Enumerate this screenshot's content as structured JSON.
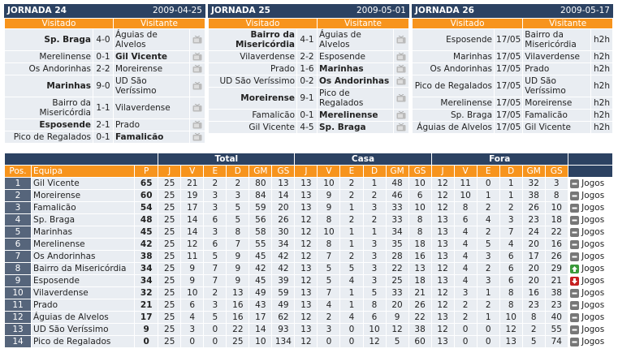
{
  "rounds": [
    {
      "title": "JORNADA 24",
      "date": "2009-04-25",
      "home_header": "Visitado",
      "away_header": "Visitante",
      "matches": [
        {
          "home": "Sp. Braga",
          "result": "4-0",
          "away": "Águias de Alvelos",
          "winner": "home"
        },
        {
          "home": "Merelinense",
          "result": "0-1",
          "away": "Gil Vicente",
          "winner": "away"
        },
        {
          "home": "Os Andorinhas",
          "result": "2-2",
          "away": "Moreirense",
          "winner": null
        },
        {
          "home": "Marinhas",
          "result": "9-0",
          "away": "UD São Veríssimo",
          "winner": "home"
        },
        {
          "home": "Bairro da Misericórdia",
          "result": "1-1",
          "away": "Vilaverdense",
          "winner": null
        },
        {
          "home": "Esposende",
          "result": "2-1",
          "away": "Prado",
          "winner": "home"
        },
        {
          "home": "Pico de Regalados",
          "result": "0-1",
          "away": "Famalicão",
          "winner": "away"
        }
      ]
    },
    {
      "title": "JORNADA 25",
      "date": "2009-05-01",
      "home_header": "Visitado",
      "away_header": "Visitante",
      "matches": [
        {
          "home": "Bairro da Misericórdia",
          "result": "4-1",
          "away": "Águias de Alvelos",
          "winner": "home"
        },
        {
          "home": "Vilaverdense",
          "result": "2-2",
          "away": "Esposende",
          "winner": null
        },
        {
          "home": "Prado",
          "result": "1-6",
          "away": "Marinhas",
          "winner": "away"
        },
        {
          "home": "UD São Veríssimo",
          "result": "0-2",
          "away": "Os Andorinhas",
          "winner": "away"
        },
        {
          "home": "Moreirense",
          "result": "9-1",
          "away": "Pico de Regalados",
          "winner": "home"
        },
        {
          "home": "Famalicão",
          "result": "0-1",
          "away": "Merelinense",
          "winner": "away"
        },
        {
          "home": "Gil Vicente",
          "result": "4-5",
          "away": "Sp. Braga",
          "winner": "away"
        }
      ]
    },
    {
      "title": "JORNADA 26",
      "date": "2009-05-17",
      "home_header": "Visitado",
      "away_header": "Visitante",
      "matches": [
        {
          "home": "Esposende",
          "result": "17/05",
          "away": "Bairro da Misericórdia",
          "link": "h2h"
        },
        {
          "home": "Marinhas",
          "result": "17/05",
          "away": "Vilaverdense",
          "link": "h2h"
        },
        {
          "home": "Os Andorinhas",
          "result": "17/05",
          "away": "Prado",
          "link": "h2h"
        },
        {
          "home": "Pico de Regalados",
          "result": "17/05",
          "away": "UD São Veríssimo",
          "link": "h2h"
        },
        {
          "home": "Merelinense",
          "result": "17/05",
          "away": "Moreirense",
          "link": "h2h"
        },
        {
          "home": "Sp. Braga",
          "result": "17/05",
          "away": "Famalicão",
          "link": "h2h"
        },
        {
          "home": "Águias de Alvelos",
          "result": "17/05",
          "away": "Gil Vicente",
          "link": "h2h"
        }
      ]
    }
  ],
  "standings": {
    "groups": [
      "Total",
      "Casa",
      "Fora"
    ],
    "columns": [
      "Pos.",
      "Equipa",
      "P",
      "J",
      "V",
      "E",
      "D",
      "GM",
      "GS",
      "J",
      "V",
      "E",
      "D",
      "GM",
      "GS",
      "J",
      "V",
      "E",
      "D",
      "GM",
      "GS"
    ],
    "rows": [
      [
        1,
        "Gil Vicente",
        65,
        25,
        21,
        2,
        2,
        80,
        13,
        13,
        10,
        2,
        1,
        48,
        10,
        12,
        11,
        0,
        1,
        32,
        3
      ],
      [
        2,
        "Moreirense",
        60,
        25,
        19,
        3,
        3,
        84,
        14,
        13,
        9,
        2,
        2,
        46,
        6,
        12,
        10,
        1,
        1,
        38,
        8
      ],
      [
        3,
        "Famalicão",
        54,
        25,
        17,
        3,
        5,
        59,
        20,
        13,
        9,
        1,
        3,
        33,
        10,
        12,
        8,
        2,
        2,
        26,
        10
      ],
      [
        4,
        "Sp. Braga",
        48,
        25,
        14,
        6,
        5,
        56,
        26,
        12,
        8,
        2,
        2,
        33,
        8,
        13,
        6,
        4,
        3,
        23,
        18
      ],
      [
        5,
        "Marinhas",
        45,
        25,
        14,
        3,
        8,
        58,
        30,
        12,
        10,
        1,
        1,
        34,
        8,
        13,
        4,
        2,
        7,
        24,
        22
      ],
      [
        6,
        "Merelinense",
        42,
        25,
        12,
        6,
        7,
        55,
        34,
        12,
        8,
        1,
        3,
        35,
        18,
        13,
        4,
        5,
        4,
        20,
        16
      ],
      [
        7,
        "Os Andorinhas",
        38,
        25,
        11,
        5,
        9,
        45,
        42,
        12,
        7,
        2,
        3,
        28,
        16,
        13,
        4,
        3,
        6,
        17,
        26
      ],
      [
        8,
        "Bairro da Misericórdia",
        34,
        25,
        9,
        7,
        9,
        42,
        42,
        13,
        5,
        5,
        3,
        22,
        13,
        12,
        4,
        2,
        6,
        20,
        29
      ],
      [
        9,
        "Esposende",
        34,
        25,
        9,
        7,
        9,
        45,
        39,
        12,
        5,
        4,
        3,
        25,
        18,
        13,
        4,
        3,
        6,
        20,
        21
      ],
      [
        10,
        "Vilaverdense",
        32,
        25,
        10,
        2,
        13,
        49,
        59,
        13,
        7,
        1,
        5,
        33,
        21,
        12,
        3,
        1,
        8,
        16,
        38
      ],
      [
        11,
        "Prado",
        21,
        25,
        6,
        3,
        16,
        43,
        49,
        13,
        4,
        1,
        8,
        20,
        26,
        12,
        2,
        2,
        8,
        23,
        23
      ],
      [
        12,
        "Águias de Alvelos",
        17,
        25,
        4,
        5,
        16,
        17,
        62,
        12,
        2,
        4,
        6,
        9,
        22,
        13,
        2,
        1,
        10,
        8,
        40
      ],
      [
        13,
        "UD São Veríssimo",
        9,
        25,
        3,
        0,
        22,
        14,
        93,
        13,
        3,
        0,
        10,
        12,
        38,
        12,
        0,
        0,
        12,
        2,
        55
      ],
      [
        14,
        "Pico de Regalados",
        0,
        25,
        0,
        0,
        25,
        10,
        134,
        12,
        0,
        0,
        12,
        5,
        60,
        13,
        0,
        0,
        13,
        5,
        74
      ]
    ],
    "trend": [
      "same",
      "same",
      "same",
      "same",
      "same",
      "same",
      "same",
      "up",
      "down",
      "same",
      "same",
      "same",
      "same",
      "same"
    ],
    "link_label": "Jogos"
  }
}
